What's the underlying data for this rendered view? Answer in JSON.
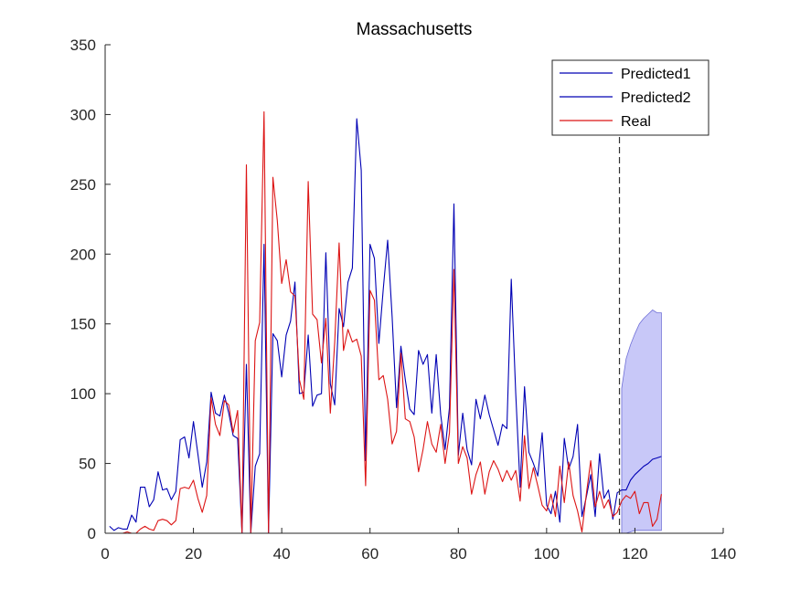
{
  "chart_data": {
    "type": "line",
    "title": "Massachusetts",
    "xlabel": "",
    "ylabel": "",
    "xlim": [
      0,
      140
    ],
    "ylim": [
      0,
      350
    ],
    "xticks": [
      0,
      20,
      40,
      60,
      80,
      100,
      120,
      140
    ],
    "yticks": [
      0,
      50,
      100,
      150,
      200,
      250,
      300,
      350
    ],
    "grid": false,
    "legend_position": "top-right",
    "vertical_line_x": 116.5,
    "series": [
      {
        "name": "Predicted1",
        "color": "#0000b4",
        "points": [
          [
            1,
            5
          ],
          [
            2,
            2
          ],
          [
            3,
            4
          ],
          [
            4,
            3
          ],
          [
            5,
            3
          ],
          [
            6,
            13
          ],
          [
            7,
            8
          ],
          [
            8,
            33
          ],
          [
            9,
            33
          ],
          [
            10,
            19
          ],
          [
            11,
            24
          ],
          [
            12,
            44
          ],
          [
            13,
            31
          ],
          [
            14,
            32
          ],
          [
            15,
            24
          ],
          [
            16,
            30
          ],
          [
            17,
            67
          ],
          [
            18,
            69
          ],
          [
            19,
            54
          ],
          [
            20,
            80
          ],
          [
            21,
            57
          ],
          [
            22,
            33
          ],
          [
            23,
            51
          ],
          [
            24,
            101
          ],
          [
            25,
            86
          ],
          [
            26,
            84
          ],
          [
            27,
            99
          ],
          [
            28,
            86
          ],
          [
            29,
            70
          ],
          [
            30,
            68
          ],
          [
            31,
            0
          ],
          [
            32,
            121
          ],
          [
            33,
            0
          ],
          [
            34,
            48
          ],
          [
            35,
            57
          ],
          [
            36,
            207
          ],
          [
            37,
            0
          ],
          [
            38,
            143
          ],
          [
            39,
            138
          ],
          [
            40,
            112
          ],
          [
            41,
            142
          ],
          [
            42,
            152
          ],
          [
            43,
            180
          ],
          [
            44,
            100
          ],
          [
            45,
            101
          ],
          [
            46,
            142
          ],
          [
            47,
            91
          ],
          [
            48,
            99
          ],
          [
            49,
            100
          ],
          [
            50,
            201
          ],
          [
            51,
            107
          ],
          [
            52,
            92
          ],
          [
            53,
            161
          ],
          [
            54,
            148
          ],
          [
            55,
            180
          ],
          [
            56,
            190
          ],
          [
            57,
            297
          ],
          [
            58,
            260
          ],
          [
            59,
            52
          ],
          [
            60,
            207
          ],
          [
            61,
            197
          ],
          [
            62,
            136
          ],
          [
            63,
            175
          ],
          [
            64,
            210
          ],
          [
            65,
            155
          ],
          [
            66,
            90
          ],
          [
            67,
            134
          ],
          [
            68,
            110
          ],
          [
            69,
            89
          ],
          [
            70,
            85
          ],
          [
            71,
            131
          ],
          [
            72,
            121
          ],
          [
            73,
            128
          ],
          [
            74,
            86
          ],
          [
            75,
            128
          ],
          [
            76,
            85
          ],
          [
            77,
            60
          ],
          [
            78,
            90
          ],
          [
            79,
            236
          ],
          [
            80,
            56
          ],
          [
            81,
            86
          ],
          [
            82,
            60
          ],
          [
            83,
            49
          ],
          [
            84,
            96
          ],
          [
            85,
            82
          ],
          [
            86,
            99
          ],
          [
            87,
            85
          ],
          [
            88,
            74
          ],
          [
            89,
            63
          ],
          [
            90,
            78
          ],
          [
            91,
            75
          ],
          [
            92,
            182
          ],
          [
            93,
            100
          ],
          [
            94,
            33
          ],
          [
            95,
            105
          ],
          [
            96,
            58
          ],
          [
            97,
            50
          ],
          [
            98,
            41
          ],
          [
            99,
            72
          ],
          [
            100,
            20
          ],
          [
            101,
            14
          ],
          [
            102,
            30
          ],
          [
            103,
            8
          ],
          [
            104,
            68
          ],
          [
            105,
            46
          ],
          [
            106,
            55
          ],
          [
            107,
            78
          ],
          [
            108,
            12
          ],
          [
            109,
            26
          ],
          [
            110,
            42
          ],
          [
            111,
            12
          ],
          [
            112,
            57
          ],
          [
            113,
            25
          ],
          [
            114,
            31
          ],
          [
            115,
            10
          ],
          [
            116,
            29
          ],
          [
            117,
            31
          ],
          [
            118,
            31
          ],
          [
            119,
            38
          ],
          [
            120,
            42
          ],
          [
            121,
            45
          ],
          [
            122,
            48
          ],
          [
            123,
            50
          ],
          [
            124,
            53
          ],
          [
            125,
            54
          ],
          [
            126,
            55
          ]
        ]
      },
      {
        "name": "Predicted2",
        "color": "#0000b4",
        "band_color": "#c8c8f8",
        "band_x": [
          117,
          118,
          119,
          120,
          121,
          122,
          123,
          124,
          125,
          126
        ],
        "band_upper": [
          104,
          125,
          135,
          143,
          150,
          154,
          157,
          160,
          158,
          158
        ],
        "band_lower": [
          0,
          0,
          1,
          2,
          2,
          2,
          2,
          2,
          2,
          2
        ]
      },
      {
        "name": "Real",
        "color": "#dc1414",
        "points": [
          [
            1,
            0
          ],
          [
            2,
            0
          ],
          [
            3,
            0
          ],
          [
            4,
            0
          ],
          [
            5,
            1
          ],
          [
            6,
            0
          ],
          [
            7,
            0
          ],
          [
            8,
            3
          ],
          [
            9,
            5
          ],
          [
            10,
            3
          ],
          [
            11,
            2
          ],
          [
            12,
            9
          ],
          [
            13,
            10
          ],
          [
            14,
            9
          ],
          [
            15,
            6
          ],
          [
            16,
            9
          ],
          [
            17,
            32
          ],
          [
            18,
            33
          ],
          [
            19,
            32
          ],
          [
            20,
            38
          ],
          [
            21,
            25
          ],
          [
            22,
            15
          ],
          [
            23,
            27
          ],
          [
            24,
            97
          ],
          [
            25,
            78
          ],
          [
            26,
            70
          ],
          [
            27,
            95
          ],
          [
            28,
            92
          ],
          [
            29,
            72
          ],
          [
            30,
            88
          ],
          [
            31,
            0
          ],
          [
            32,
            264
          ],
          [
            33,
            0
          ],
          [
            34,
            138
          ],
          [
            35,
            151
          ],
          [
            36,
            302
          ],
          [
            37,
            0
          ],
          [
            38,
            255
          ],
          [
            39,
            224
          ],
          [
            40,
            179
          ],
          [
            41,
            196
          ],
          [
            42,
            173
          ],
          [
            43,
            170
          ],
          [
            44,
            110
          ],
          [
            45,
            96
          ],
          [
            46,
            252
          ],
          [
            47,
            157
          ],
          [
            48,
            153
          ],
          [
            49,
            122
          ],
          [
            50,
            154
          ],
          [
            51,
            86
          ],
          [
            52,
            137
          ],
          [
            53,
            208
          ],
          [
            54,
            131
          ],
          [
            55,
            146
          ],
          [
            56,
            137
          ],
          [
            57,
            139
          ],
          [
            58,
            127
          ],
          [
            59,
            34
          ],
          [
            60,
            174
          ],
          [
            61,
            167
          ],
          [
            62,
            110
          ],
          [
            63,
            113
          ],
          [
            64,
            96
          ],
          [
            65,
            64
          ],
          [
            66,
            73
          ],
          [
            67,
            129
          ],
          [
            68,
            82
          ],
          [
            69,
            80
          ],
          [
            70,
            69
          ],
          [
            71,
            44
          ],
          [
            72,
            60
          ],
          [
            73,
            80
          ],
          [
            74,
            64
          ],
          [
            75,
            58
          ],
          [
            76,
            78
          ],
          [
            77,
            50
          ],
          [
            78,
            72
          ],
          [
            79,
            189
          ],
          [
            80,
            50
          ],
          [
            81,
            62
          ],
          [
            82,
            54
          ],
          [
            83,
            28
          ],
          [
            84,
            42
          ],
          [
            85,
            51
          ],
          [
            86,
            28
          ],
          [
            87,
            44
          ],
          [
            88,
            52
          ],
          [
            89,
            46
          ],
          [
            90,
            37
          ],
          [
            91,
            45
          ],
          [
            92,
            38
          ],
          [
            93,
            45
          ],
          [
            94,
            23
          ],
          [
            95,
            70
          ],
          [
            96,
            32
          ],
          [
            97,
            47
          ],
          [
            98,
            34
          ],
          [
            99,
            20
          ],
          [
            100,
            16
          ],
          [
            101,
            28
          ],
          [
            102,
            12
          ],
          [
            103,
            48
          ],
          [
            104,
            22
          ],
          [
            105,
            51
          ],
          [
            106,
            27
          ],
          [
            107,
            16
          ],
          [
            108,
            1
          ],
          [
            109,
            28
          ],
          [
            110,
            52
          ],
          [
            111,
            19
          ],
          [
            112,
            30
          ],
          [
            113,
            18
          ],
          [
            114,
            24
          ],
          [
            115,
            12
          ],
          [
            116,
            15
          ],
          [
            117,
            23
          ],
          [
            118,
            27
          ],
          [
            119,
            25
          ],
          [
            120,
            30
          ],
          [
            121,
            14
          ],
          [
            122,
            22
          ],
          [
            123,
            22
          ],
          [
            124,
            5
          ],
          [
            125,
            10
          ],
          [
            126,
            28
          ]
        ]
      }
    ]
  }
}
